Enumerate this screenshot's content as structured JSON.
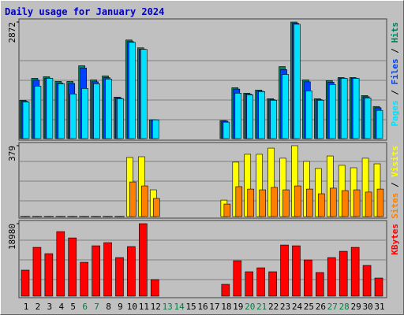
{
  "chart_data": [
    {
      "type": "bar",
      "title": "Daily usage for January 2024",
      "ylim": [
        0,
        2872
      ],
      "yticks": [
        2872
      ],
      "series": [
        {
          "name": "Pages",
          "color": "#00e0ff",
          "values": [
            906,
            1293,
            1486,
            1351,
            1100,
            1235,
            1351,
            1467,
            984,
            2372,
            2199,
            463,
            0,
            0,
            0,
            0,
            0,
            405,
            1119,
            1081,
            1158,
            945,
            1582,
            2818,
            1177,
            945,
            1332,
            1486,
            1486,
            1003,
            695
          ]
        },
        {
          "name": "Files",
          "color": "#0040ff",
          "values": [
            920,
            1440,
            1490,
            1370,
            1360,
            1740,
            1400,
            1500,
            1000,
            2390,
            2200,
            463,
            0,
            0,
            0,
            0,
            0,
            430,
            1220,
            1100,
            1170,
            960,
            1700,
            2840,
            1400,
            960,
            1390,
            1490,
            1490,
            1030,
            760
          ]
        },
        {
          "name": "Hits",
          "color": "#00805c",
          "values": [
            945,
            1486,
            1525,
            1409,
            1409,
            1795,
            1447,
            1544,
            1023,
            2430,
            2237,
            463,
            0,
            0,
            0,
            0,
            0,
            444,
            1254,
            1119,
            1196,
            984,
            1775,
            2872,
            1447,
            984,
            1428,
            1505,
            1505,
            1061,
            791
          ]
        }
      ]
    },
    {
      "type": "bar",
      "ylim": [
        0,
        379
      ],
      "yticks": [
        379
      ],
      "series": [
        {
          "name": "Sites",
          "color": "#ff8000",
          "values": [
            1,
            1,
            1,
            1,
            1,
            1,
            1,
            1,
            1,
            185,
            164,
            97,
            0,
            0,
            0,
            0,
            0,
            67,
            160,
            147,
            143,
            156,
            143,
            164,
            147,
            122,
            152,
            139,
            143,
            131,
            147
          ]
        },
        {
          "name": "Visits",
          "color": "#ffff00",
          "values": [
            1,
            1,
            1,
            1,
            1,
            1,
            1,
            1,
            1,
            316,
            320,
            143,
            0,
            0,
            0,
            0,
            0,
            88,
            291,
            333,
            333,
            366,
            312,
            379,
            295,
            257,
            324,
            274,
            261,
            312,
            282
          ]
        }
      ]
    },
    {
      "type": "bar",
      "ylim": [
        0,
        18980
      ],
      "yticks": [
        18980
      ],
      "series": [
        {
          "name": "KBytes",
          "color": "#ff0000",
          "values": [
            6808,
            12773,
            11124,
            16895,
            15246,
            8860,
            13185,
            14009,
            10094,
            12979,
            18980,
            4327,
            0,
            0,
            0,
            0,
            0,
            3091,
            9270,
            6387,
            7417,
            6387,
            13391,
            13185,
            9476,
            6181,
            10094,
            11742,
            12773,
            8035,
            4739
          ]
        }
      ],
      "categories": [
        "1",
        "2",
        "3",
        "4",
        "5",
        "6",
        "7",
        "8",
        "9",
        "10",
        "11",
        "12",
        "13",
        "14",
        "15",
        "16",
        "17",
        "18",
        "19",
        "20",
        "21",
        "22",
        "23",
        "24",
        "25",
        "26",
        "27",
        "28",
        "29",
        "30",
        "31"
      ],
      "category_colors": [
        "#000",
        "#000",
        "#000",
        "#000",
        "#000",
        "#008040",
        "#008040",
        "#000",
        "#000",
        "#000",
        "#000",
        "#000",
        "#008040",
        "#008040",
        "#000",
        "#000",
        "#000",
        "#000",
        "#000",
        "#008040",
        "#008040",
        "#000",
        "#000",
        "#000",
        "#000",
        "#000",
        "#008040",
        "#008040",
        "#000",
        "#000",
        "#000"
      ]
    }
  ]
}
